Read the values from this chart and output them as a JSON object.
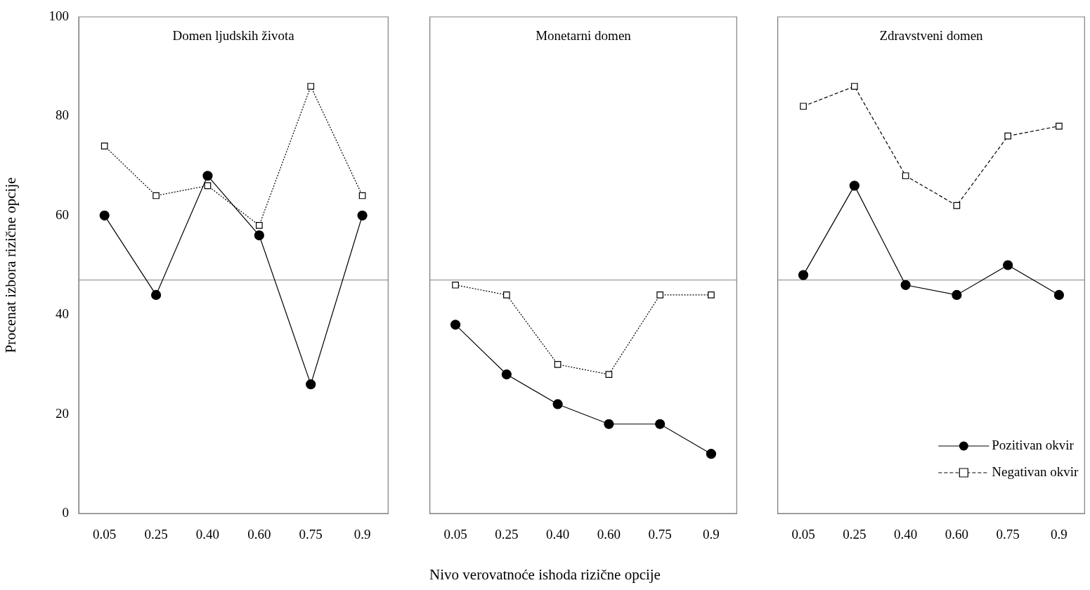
{
  "chart_data": [
    {
      "type": "line",
      "title": "Domen ljudskih života",
      "ylabel": "Procenat izbora rizične opcije",
      "categories": [
        "0.05",
        "0.25",
        "0.40",
        "0.60",
        "0.75",
        "0.9"
      ],
      "ylim": [
        0,
        100
      ],
      "yticks": [
        0,
        20,
        40,
        60,
        80,
        100
      ],
      "grid": false,
      "legend": false,
      "series": [
        {
          "color": "#000000",
          "marker": "circle",
          "line_style": "solid",
          "values": [
            60,
            44,
            68,
            56,
            26,
            60
          ]
        },
        {
          "color": "#000000",
          "marker": "square",
          "line_style": "dotted",
          "values": [
            74,
            64,
            66,
            58,
            86,
            64
          ]
        }
      ],
      "ref_lines": [
        {
          "axis": "y",
          "value": 47,
          "color": "#808080"
        }
      ]
    },
    {
      "type": "line",
      "title": "Monetarni domen",
      "xlabel": "Nivo verovatnoće ishoda rizične opcije",
      "categories": [
        "0.05",
        "0.25",
        "0.40",
        "0.60",
        "0.75",
        "0.9"
      ],
      "ylim": [
        0,
        100
      ],
      "tick_labels": "x",
      "grid": false,
      "legend": false,
      "series": [
        {
          "color": "#000000",
          "marker": "circle",
          "line_style": "solid",
          "values": [
            38,
            28,
            22,
            18,
            18,
            12
          ]
        },
        {
          "color": "#000000",
          "marker": "square",
          "line_style": "dotted",
          "values": [
            46,
            44,
            30,
            28,
            44,
            44
          ]
        }
      ],
      "ref_lines": [
        {
          "axis": "y",
          "value": 47,
          "color": "#808080"
        }
      ]
    },
    {
      "type": "line",
      "title": "Zdravstveni domen",
      "categories": [
        "0.05",
        "0.25",
        "0.40",
        "0.60",
        "0.75",
        "0.9"
      ],
      "ylim": [
        0,
        100
      ],
      "tick_labels": "x",
      "grid": false,
      "legend": "bottom right",
      "series": [
        {
          "name": "Pozitivan okvir",
          "color": "#000000",
          "marker": "circle",
          "line_style": "solid",
          "values": [
            48,
            66,
            46,
            44,
            50,
            44
          ]
        },
        {
          "name": "Negativan okvir",
          "color": "#000000",
          "marker": "square",
          "line_style": "dashed",
          "values": [
            82,
            86,
            68,
            62,
            76,
            78
          ]
        }
      ],
      "ref_lines": [
        {
          "axis": "y",
          "value": 47,
          "color": "#808080"
        }
      ]
    }
  ]
}
